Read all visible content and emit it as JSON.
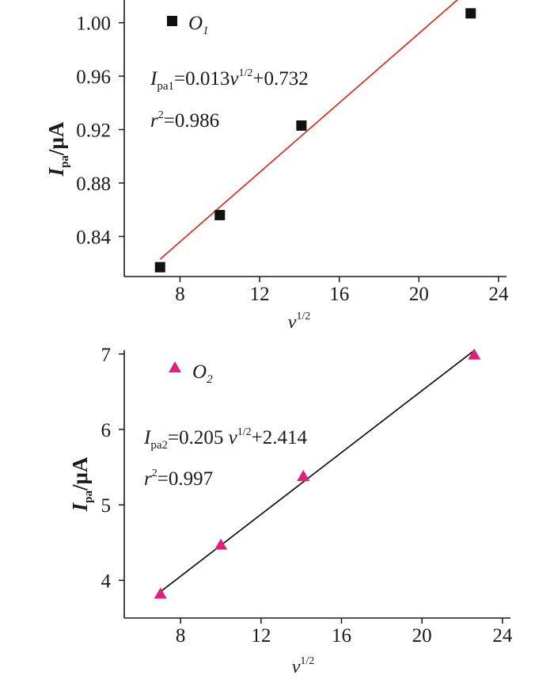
{
  "colors": {
    "axis": "#1a1a1a",
    "chart1_marker": "#111111",
    "chart1_fit": "#e8291c",
    "chart2_marker": "#e0207a",
    "chart2_fit": "#111111"
  },
  "chart_data": [
    {
      "type": "scatter",
      "x": [
        7.0,
        10.0,
        14.1,
        22.6
      ],
      "y": [
        0.817,
        0.856,
        0.923,
        1.007
      ],
      "legend": {
        "main": "O",
        "sub": "1"
      },
      "marker": "square",
      "xticks": [
        "8",
        "12",
        "16",
        "20",
        "24"
      ],
      "yticks": [
        "0.84",
        "0.88",
        "0.92",
        "0.96",
        "1.00"
      ],
      "xlim": [
        5.2,
        24.4
      ],
      "ylim": [
        0.81,
        1.017
      ],
      "xlabel": {
        "main": "v",
        "sup": "1/2"
      },
      "ylabel": {
        "main": "I",
        "sub": "pa",
        "unit": "/μA"
      },
      "fit": {
        "slope": 0.013,
        "intercept": 0.732,
        "x_range": [
          7.0,
          23.0
        ]
      },
      "equation": {
        "lhs": "I",
        "sub": "pa1",
        "mid": "=0.013",
        "var": "v",
        "sup": "1/2",
        "tail": "+0.732"
      },
      "r2": {
        "var": "r",
        "sup": "2",
        "value": "=0.986"
      }
    },
    {
      "type": "scatter",
      "x": [
        7.0,
        10.0,
        14.1,
        22.6
      ],
      "y": [
        3.82,
        4.47,
        5.38,
        6.99
      ],
      "legend": {
        "main": "O",
        "sub": "2"
      },
      "marker": "triangle",
      "xticks": [
        "8",
        "12",
        "16",
        "20",
        "24"
      ],
      "yticks": [
        "4",
        "5",
        "6",
        "7"
      ],
      "xlim": [
        5.2,
        24.4
      ],
      "ylim": [
        3.5,
        7.05
      ],
      "xlabel": {
        "main": "v",
        "sup": "1/2"
      },
      "ylabel": {
        "main": "I",
        "sub": "pa",
        "unit": "/μA"
      },
      "fit": {
        "slope": 0.205,
        "intercept": 2.414,
        "x_range": [
          7.0,
          22.6
        ]
      },
      "equation": {
        "lhs": "I",
        "sub": "pa2",
        "mid": "=0.205 ",
        "var": "v",
        "sup": "1/2",
        "tail": "+2.414"
      },
      "r2": {
        "var": "r",
        "sup": "2",
        "value": "=0.997"
      }
    }
  ]
}
